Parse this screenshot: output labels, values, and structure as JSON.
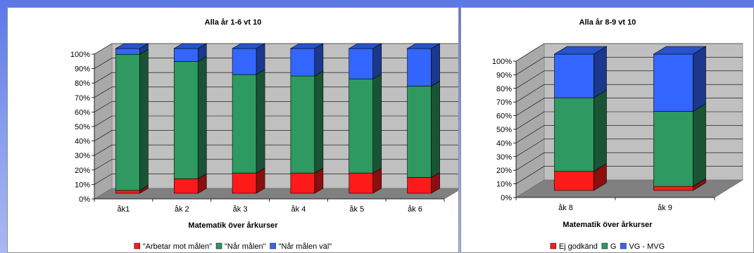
{
  "colors": {
    "red": "#ff1a1a",
    "green": "#2e9960",
    "blue": "#3366ff",
    "floor": "#808080",
    "wall": "#c0c0c0"
  },
  "chart_data": [
    {
      "type": "bar",
      "stacked": true,
      "three_d": true,
      "title": "Alla  år 1-6 vt 10",
      "xlabel": "Matematik över årkurser",
      "ylabel": "",
      "ylim": [
        0,
        100
      ],
      "y_ticks": [
        "0%",
        "10%",
        "20%",
        "30%",
        "40%",
        "50%",
        "60%",
        "70%",
        "80%",
        "90%",
        "100%"
      ],
      "grid": true,
      "legend_position": "bottom",
      "categories": [
        "åk1",
        "åk 2",
        "åk 3",
        "åk 4",
        "åk 5",
        "åk 6"
      ],
      "series": [
        {
          "name": "\"Arbetar mot målen\"",
          "color": "#ff1a1a",
          "values": [
            2,
            10,
            14,
            14,
            14,
            11
          ]
        },
        {
          "name": "\"Når målen\"",
          "color": "#2e9960",
          "values": [
            94,
            81,
            68,
            67,
            65,
            63
          ]
        },
        {
          "name": "\"Når målen väl\"",
          "color": "#3366ff",
          "values": [
            4,
            9,
            18,
            19,
            21,
            26
          ]
        }
      ]
    },
    {
      "type": "bar",
      "stacked": true,
      "three_d": true,
      "title": "Alla år 8-9 vt 10",
      "xlabel": "Matematik över årkurser",
      "ylabel": "",
      "ylim": [
        0,
        100
      ],
      "y_ticks": [
        "0%",
        "10%",
        "20%",
        "30%",
        "40%",
        "50%",
        "60%",
        "70%",
        "80%",
        "90%",
        "100%"
      ],
      "grid": true,
      "legend_position": "bottom",
      "categories": [
        "åk 8",
        "åk 9"
      ],
      "series": [
        {
          "name": "Ej godkänd",
          "color": "#ff1a1a",
          "values": [
            14,
            3
          ]
        },
        {
          "name": "G",
          "color": "#2e9960",
          "values": [
            54,
            55
          ]
        },
        {
          "name": "VG - MVG",
          "color": "#3366ff",
          "values": [
            32,
            42
          ]
        }
      ]
    }
  ]
}
